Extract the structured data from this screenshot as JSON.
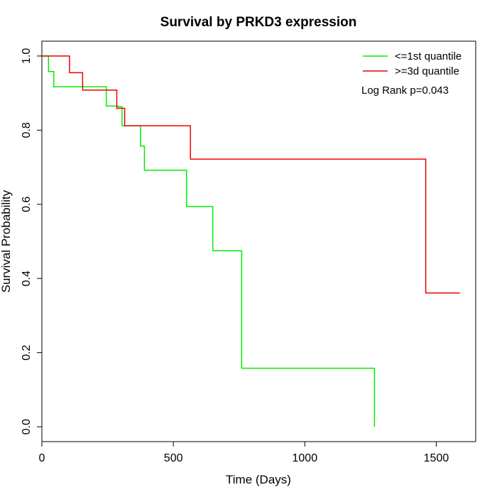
{
  "chart_data": {
    "type": "line",
    "subtype": "kaplan-meier-step",
    "title": "Survival by PRKD3 expression",
    "xlabel": "Time (Days)",
    "ylabel": "Survival Probability",
    "xlim": [
      0,
      1650
    ],
    "ylim": [
      -0.04,
      1.04
    ],
    "xticks": [
      0,
      500,
      1000,
      1500
    ],
    "yticks": [
      0.0,
      0.2,
      0.4,
      0.6,
      0.8,
      1.0
    ],
    "xtick_labels": [
      "0",
      "500",
      "1000",
      "1500"
    ],
    "ytick_labels": [
      "0.0",
      "0.2",
      "0.4",
      "0.6",
      "0.8",
      "1.0"
    ],
    "grid": false,
    "legend_position": "top-right",
    "annotation": "Log Rank p=0.043",
    "series": [
      {
        "name": "<=1st quantile",
        "color": "#00ee00",
        "x": [
          0,
          25,
          25,
          45,
          45,
          245,
          245,
          290,
          290,
          305,
          305,
          375,
          375,
          390,
          390,
          550,
          550,
          650,
          650,
          760,
          760,
          1265,
          1265
        ],
        "y": [
          1.0,
          1.0,
          0.958,
          0.958,
          0.917,
          0.917,
          0.865,
          0.865,
          0.863,
          0.863,
          0.812,
          0.812,
          0.757,
          0.757,
          0.692,
          0.692,
          0.594,
          0.594,
          0.475,
          0.475,
          0.158,
          0.158,
          0.0
        ]
      },
      {
        "name": ">=3d quantile",
        "color": "#ee0000",
        "x": [
          0,
          105,
          105,
          155,
          155,
          285,
          285,
          315,
          315,
          565,
          565,
          1460,
          1460,
          1590
        ],
        "y": [
          1.0,
          1.0,
          0.955,
          0.955,
          0.908,
          0.908,
          0.859,
          0.859,
          0.812,
          0.812,
          0.722,
          0.722,
          0.361,
          0.361
        ]
      }
    ]
  }
}
